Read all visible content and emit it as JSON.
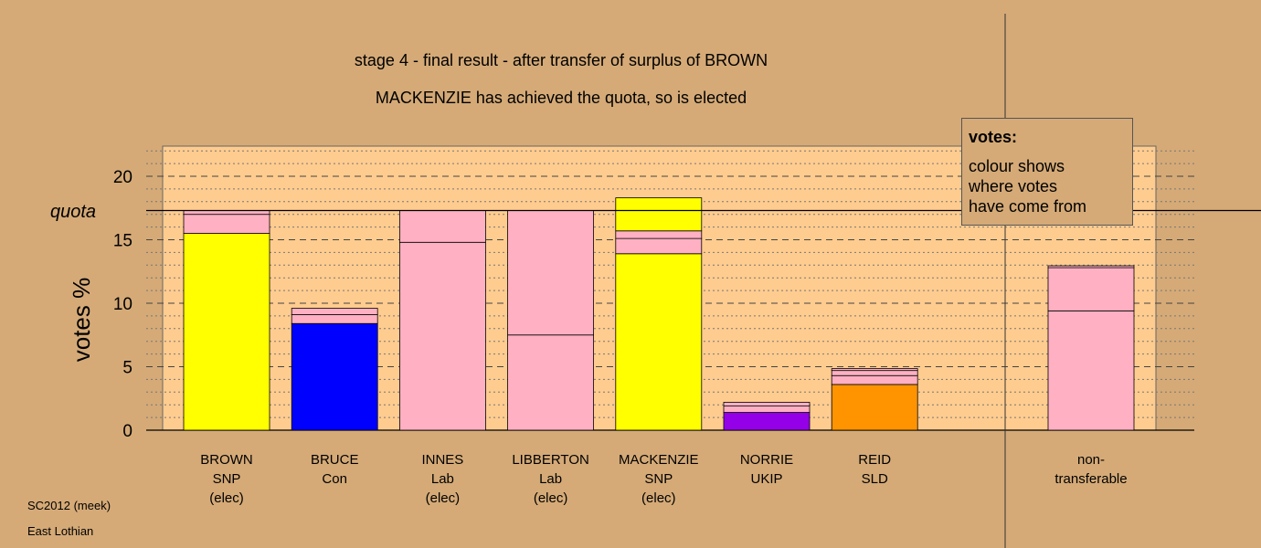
{
  "header": {
    "title": "stage 4 - final result - after transfer of surplus of BROWN",
    "subtitle": "MACKENZIE has achieved the quota, so is elected"
  },
  "chart_data": {
    "type": "bar",
    "stacked": true,
    "ylabel": "votes %",
    "ylim": [
      0,
      22.5
    ],
    "yticks": [
      0,
      5,
      10,
      15,
      20
    ],
    "quota": 17.3,
    "quota_label": "quota",
    "grid": true,
    "categories": [
      {
        "name": "BROWN",
        "party": "SNP",
        "status": "(elec)"
      },
      {
        "name": "BRUCE",
        "party": "Con",
        "status": ""
      },
      {
        "name": "INNES",
        "party": "Lab",
        "status": "(elec)"
      },
      {
        "name": "LIBBERTON",
        "party": "Lab",
        "status": "(elec)"
      },
      {
        "name": "MACKENZIE",
        "party": "SNP",
        "status": "(elec)"
      },
      {
        "name": "NORRIE",
        "party": "UKIP",
        "status": ""
      },
      {
        "name": "REID",
        "party": "SLD",
        "status": ""
      }
    ],
    "stacks": [
      [
        {
          "value": 15.5,
          "color": "#ffff00"
        },
        {
          "value": 1.5,
          "color": "#ffb0c2"
        },
        {
          "value": 0.3,
          "color": "#ffb0c2"
        }
      ],
      [
        {
          "value": 8.4,
          "color": "#0000ff"
        },
        {
          "value": 0.7,
          "color": "#ffb0c2"
        },
        {
          "value": 0.5,
          "color": "#ffb0c2"
        }
      ],
      [
        {
          "value": 14.8,
          "color": "#ffb0c2"
        },
        {
          "value": 2.5,
          "color": "#ffb0c2"
        }
      ],
      [
        {
          "value": 7.5,
          "color": "#ffb0c2"
        },
        {
          "value": 9.8,
          "color": "#ffb0c2"
        }
      ],
      [
        {
          "value": 13.9,
          "color": "#ffff00"
        },
        {
          "value": 1.2,
          "color": "#ffb0c2"
        },
        {
          "value": 0.6,
          "color": "#ffb0c2"
        },
        {
          "value": 2.6,
          "color": "#ffff00"
        }
      ],
      [
        {
          "value": 1.4,
          "color": "#9400e8"
        },
        {
          "value": 0.5,
          "color": "#ffb0c2"
        },
        {
          "value": 0.3,
          "color": "#ffb0c2"
        }
      ],
      [
        {
          "value": 3.6,
          "color": "#ff9400"
        },
        {
          "value": 0.7,
          "color": "#ffb0c2"
        },
        {
          "value": 0.4,
          "color": "#ffb0c2"
        },
        {
          "value": 0.15,
          "color": "#ffb0c2"
        }
      ]
    ],
    "nontransferable": {
      "label_line1": "non-",
      "label_line2": "transferable",
      "stack": [
        {
          "value": 9.4,
          "color": "#ffb0c2"
        },
        {
          "value": 3.4,
          "color": "#ffb0c2"
        },
        {
          "value": 0.15,
          "color": "#ffb0c2"
        }
      ]
    },
    "colors": {
      "background": "#d5aa77",
      "plot_area": "#ffcc8f",
      "pink": "#ffb0c2",
      "yellow": "#ffff00",
      "blue": "#0000ff",
      "purple": "#9400e8",
      "orange": "#ff9400"
    }
  },
  "legend": {
    "title": "votes:",
    "body": "colour shows\nwhere votes\nhave come from"
  },
  "footer": {
    "source": "SC2012 (meek)",
    "area": "East Lothian"
  }
}
